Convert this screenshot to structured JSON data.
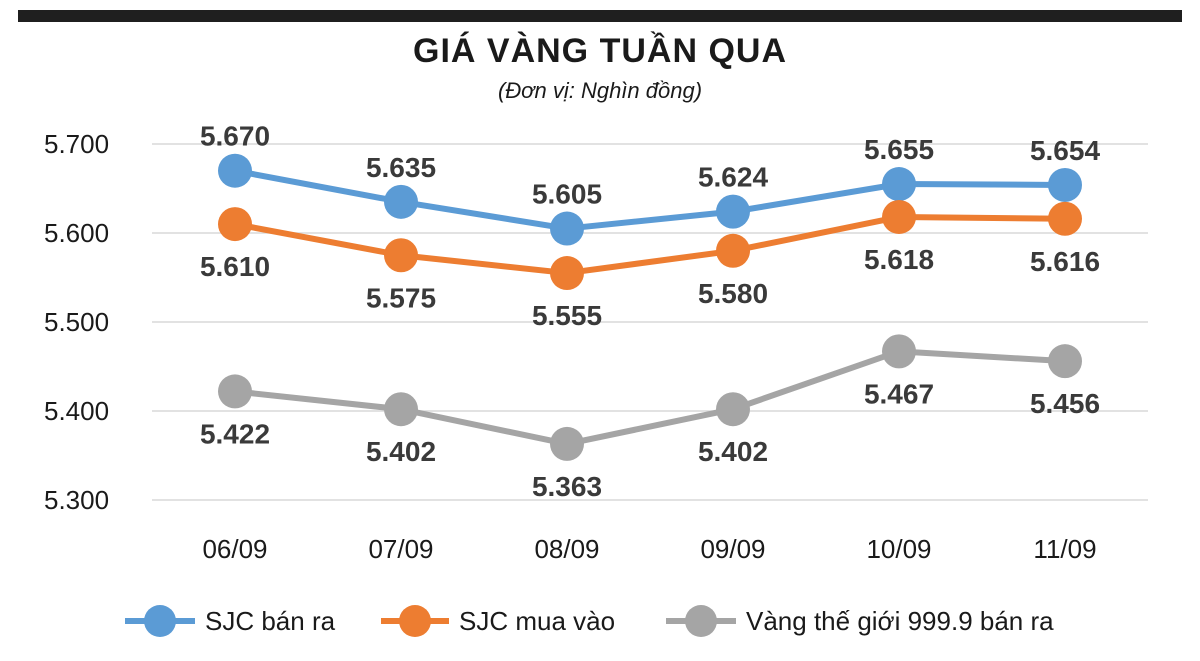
{
  "chart_data": {
    "type": "line",
    "title": "GIÁ VÀNG TUẦN QUA",
    "subtitle": "(Đơn vị: Nghìn đồng)",
    "xlabel": "",
    "ylabel": "",
    "categories": [
      "06/09",
      "07/09",
      "08/09",
      "09/09",
      "10/09",
      "11/09"
    ],
    "ylim": [
      5300,
      5700
    ],
    "yticks": [
      5300,
      5400,
      5500,
      5600,
      5700
    ],
    "ytick_labels": [
      "5.300",
      "5.400",
      "5.500",
      "5.600",
      "5.700"
    ],
    "grid": true,
    "legend_position": "bottom",
    "series": [
      {
        "name": "SJC bán ra",
        "color": "#5b9bd5",
        "label_position": "above",
        "values": [
          5670,
          5635,
          5605,
          5624,
          5655,
          5654
        ],
        "labels": [
          "5.670",
          "5.635",
          "5.605",
          "5.624",
          "5.655",
          "5.654"
        ]
      },
      {
        "name": "SJC mua vào",
        "color": "#ed7d31",
        "label_position": "below",
        "values": [
          5610,
          5575,
          5555,
          5580,
          5618,
          5616
        ],
        "labels": [
          "5.610",
          "5.575",
          "5.555",
          "5.580",
          "5.618",
          "5.616"
        ]
      },
      {
        "name": "Vàng thế giới 999.9 bán ra",
        "color": "#a5a5a5",
        "label_position": "below",
        "values": [
          5422,
          5402,
          5363,
          5402,
          5467,
          5456
        ],
        "labels": [
          "5.422",
          "5.402",
          "5.363",
          "5.402",
          "5.467",
          "5.456"
        ]
      }
    ]
  }
}
